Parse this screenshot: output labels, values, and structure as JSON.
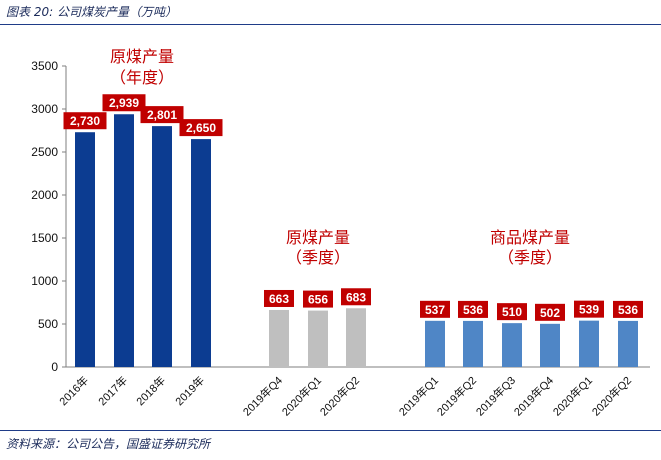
{
  "header": {
    "caption": "图表 20: 公司煤炭产量（万吨）"
  },
  "footer": {
    "source": "资料来源：公司公告，国盛证券研究所"
  },
  "chart_data": {
    "type": "bar",
    "title": "公司煤炭产量（万吨）",
    "ylim": [
      0,
      3500
    ],
    "yticks": [
      0,
      500,
      1000,
      1500,
      2000,
      2500,
      3000,
      3500
    ],
    "grid": false,
    "groups": [
      {
        "name": "原煤产量（年度）",
        "annotation": [
          "原煤产量",
          "（年度）"
        ],
        "color": "#0c3c91",
        "label_color": "#c00000",
        "categories": [
          "2016年",
          "2017年",
          "2018年",
          "2019年"
        ],
        "values": [
          2730,
          2939,
          2801,
          2650
        ],
        "labels": [
          "2,730",
          "2,939",
          "2,801",
          "2,650"
        ]
      },
      {
        "name": "原煤产量（季度）",
        "annotation": [
          "原煤产量",
          "（季度）"
        ],
        "color": "#bfbfbf",
        "label_color": "#c00000",
        "categories": [
          "2019年Q4",
          "2020年Q1",
          "2020年Q2"
        ],
        "values": [
          663,
          656,
          683
        ],
        "labels": [
          "663",
          "656",
          "683"
        ]
      },
      {
        "name": "商品煤产量（季度）",
        "annotation": [
          "商品煤产量",
          "（季度）"
        ],
        "color": "#4f86c6",
        "label_color": "#c00000",
        "categories": [
          "2019年Q1",
          "2019年Q2",
          "2019年Q3",
          "2019年Q4",
          "2020年Q1",
          "2020年Q2"
        ],
        "values": [
          537,
          536,
          510,
          502,
          539,
          536
        ],
        "labels": [
          "537",
          "536",
          "510",
          "502",
          "539",
          "536"
        ]
      }
    ]
  }
}
